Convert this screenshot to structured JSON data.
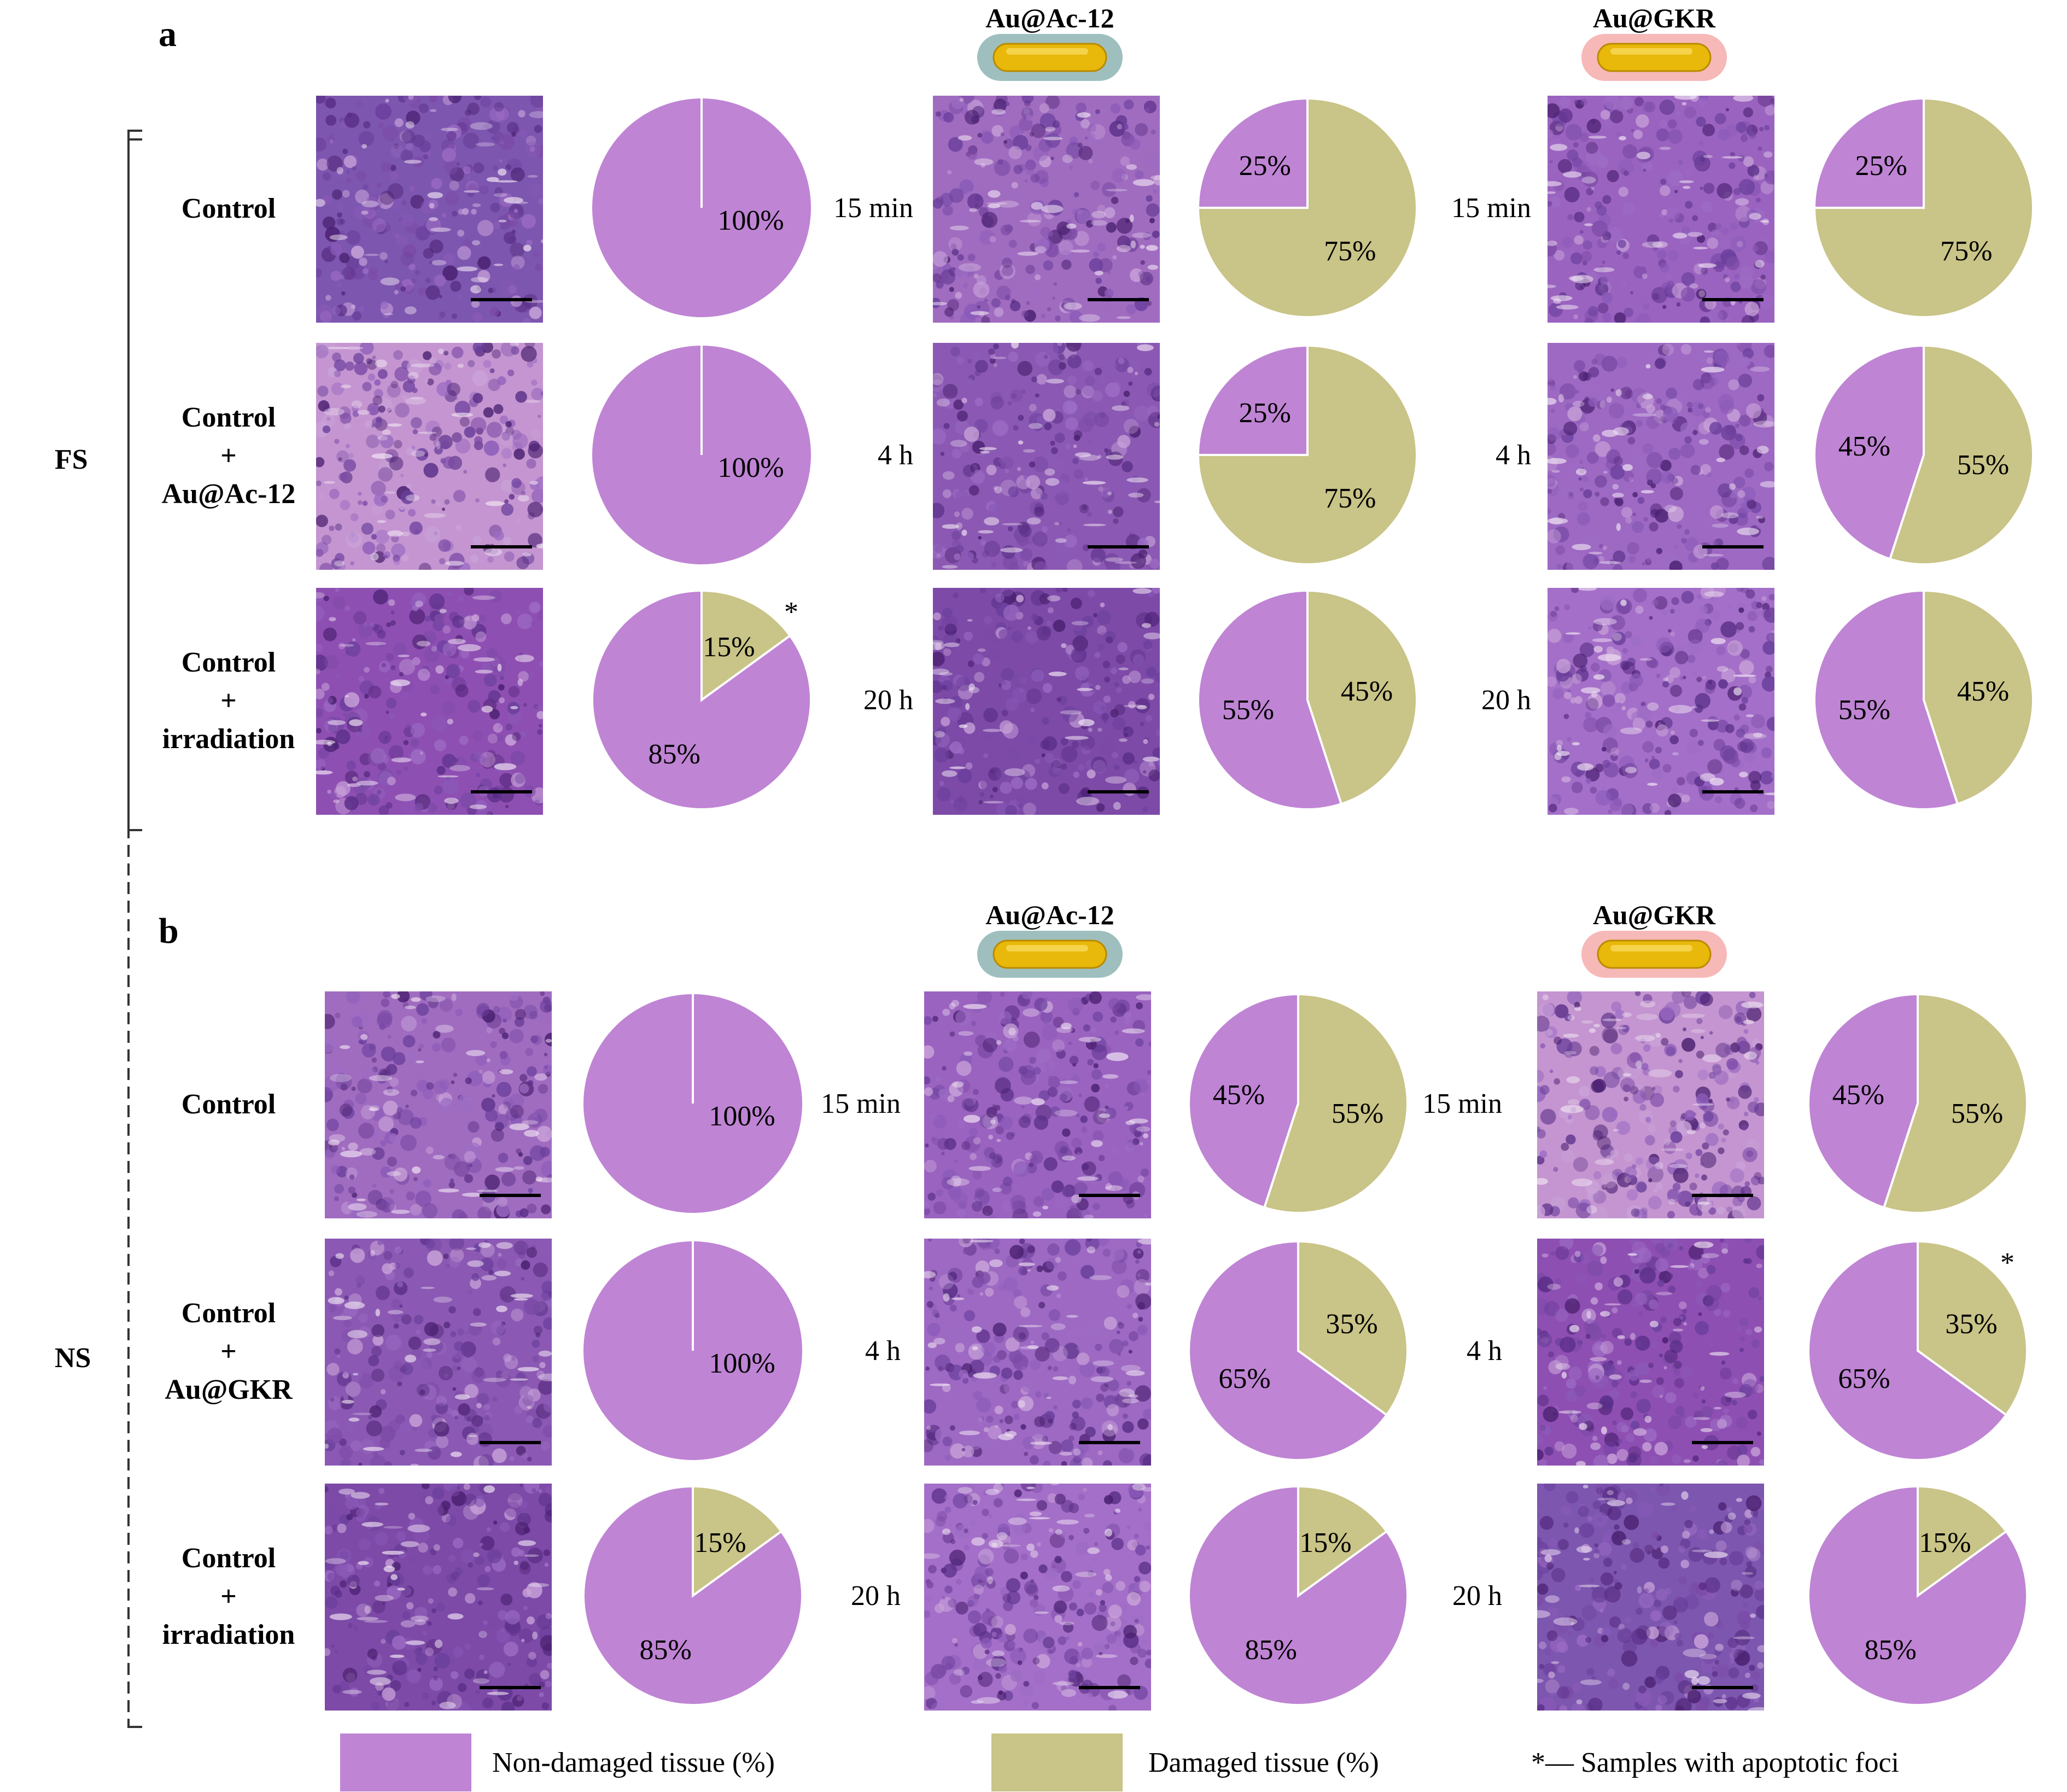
{
  "colors": {
    "non_damaged": "#BF84D4",
    "damaged": "#C9C487",
    "ac12_coat": "#9FBFBF",
    "gkr_coat": "#F7B8B8",
    "gold": "#E8B80A"
  },
  "panels": [
    {
      "letter": "a",
      "side_label": "FS",
      "group_titles": [
        "Au@Ac-12",
        "Au@GKR"
      ],
      "control_labels": [
        [
          "Control"
        ],
        [
          "Control",
          "+",
          "Au@Ac-12"
        ],
        [
          "Control",
          "+",
          "irradiation"
        ]
      ],
      "time_labels": [
        "15 min",
        "4 h",
        "20 h"
      ]
    },
    {
      "letter": "b",
      "side_label": "NS",
      "group_titles": [
        "Au@Ac-12",
        "Au@GKR"
      ],
      "control_labels": [
        [
          "Control"
        ],
        [
          "Control",
          "+",
          "Au@GKR"
        ],
        [
          "Control",
          "+",
          "irradiation"
        ]
      ],
      "time_labels": [
        "15 min",
        "4 h",
        "20 h"
      ]
    }
  ],
  "legend": {
    "non_damaged": "Non-damaged tissue (%)",
    "damaged": "Damaged tissue (%)",
    "apoptotic": "*— Samples with apoptotic foci"
  },
  "chart_data": {
    "type": "pie",
    "series_names": [
      "Non-damaged tissue (%)",
      "Damaged tissue (%)"
    ],
    "panels": [
      {
        "panel": "a",
        "rows": [
          [
            {
              "non_damaged": 100,
              "damaged": 0,
              "apoptotic": false
            },
            {
              "non_damaged": 25,
              "damaged": 75,
              "apoptotic": false
            },
            {
              "non_damaged": 25,
              "damaged": 75,
              "apoptotic": false
            }
          ],
          [
            {
              "non_damaged": 100,
              "damaged": 0,
              "apoptotic": false
            },
            {
              "non_damaged": 25,
              "damaged": 75,
              "apoptotic": false
            },
            {
              "non_damaged": 45,
              "damaged": 55,
              "apoptotic": false
            }
          ],
          [
            {
              "non_damaged": 85,
              "damaged": 15,
              "apoptotic": true
            },
            {
              "non_damaged": 55,
              "damaged": 45,
              "apoptotic": false
            },
            {
              "non_damaged": 55,
              "damaged": 45,
              "apoptotic": false
            }
          ]
        ]
      },
      {
        "panel": "b",
        "rows": [
          [
            {
              "non_damaged": 100,
              "damaged": 0,
              "apoptotic": false
            },
            {
              "non_damaged": 45,
              "damaged": 55,
              "apoptotic": false
            },
            {
              "non_damaged": 45,
              "damaged": 55,
              "apoptotic": false
            }
          ],
          [
            {
              "non_damaged": 100,
              "damaged": 0,
              "apoptotic": false
            },
            {
              "non_damaged": 65,
              "damaged": 35,
              "apoptotic": false
            },
            {
              "non_damaged": 65,
              "damaged": 35,
              "apoptotic": true
            }
          ],
          [
            {
              "non_damaged": 85,
              "damaged": 15,
              "apoptotic": false
            },
            {
              "non_damaged": 85,
              "damaged": 15,
              "apoptotic": false
            },
            {
              "non_damaged": 85,
              "damaged": 15,
              "apoptotic": false
            }
          ]
        ]
      }
    ]
  }
}
